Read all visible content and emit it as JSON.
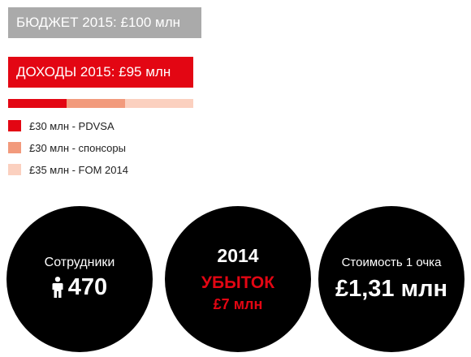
{
  "budget": {
    "label": "БЮДЖЕТ 2015: £100 млн"
  },
  "income": {
    "label": "ДОХОДЫ 2015: £95 млн",
    "split": [
      {
        "value": 30,
        "color": "#e30613"
      },
      {
        "value": 30,
        "color": "#f29a7c"
      },
      {
        "value": 35,
        "color": "#fbd0bf"
      }
    ]
  },
  "legend": [
    {
      "label": "£30 млн - PDVSA",
      "color": "#e30613"
    },
    {
      "label": "£30 млн - спонсоры",
      "color": "#f29a7c"
    },
    {
      "label": "£35 млн - FOM 2014",
      "color": "#fbd0bf"
    }
  ],
  "staff": {
    "label": "Сотрудники",
    "value": "470",
    "icon": "person-icon"
  },
  "loss": {
    "year": "2014",
    "label": "УБЫТОК",
    "value": "£7 млн"
  },
  "point_cost": {
    "label": "Стоимость 1 очка",
    "value": "£1,31 млн"
  }
}
